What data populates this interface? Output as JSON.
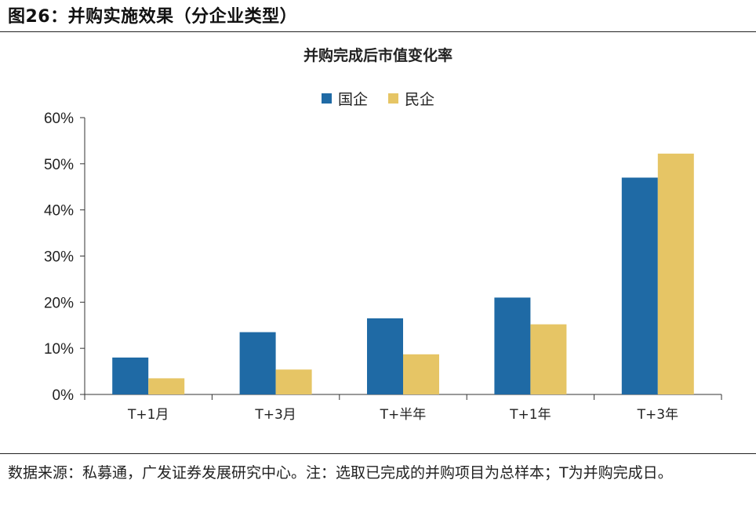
{
  "figure": {
    "title": "图26：并购实施效果（分企业类型）",
    "note": "数据来源：私募通，广发证券发展研究中心。注：选取已完成的并购项目为总样本；T为并购完成日。"
  },
  "chart_data": {
    "type": "bar",
    "title": "并购完成后市值变化率",
    "categories": [
      "T+1月",
      "T+3月",
      "T+半年",
      "T+1年",
      "T+3年"
    ],
    "series": [
      {
        "name": "国企",
        "color": "#1f6aa5",
        "values": [
          0.08,
          0.135,
          0.165,
          0.21,
          0.47
        ]
      },
      {
        "name": "民企",
        "color": "#e6c565",
        "values": [
          0.035,
          0.054,
          0.087,
          0.152,
          0.522
        ]
      }
    ],
    "ylim": [
      0,
      0.6
    ],
    "yticks": [
      {
        "value": 0,
        "label": "0%"
      },
      {
        "value": 0.1,
        "label": "10%"
      },
      {
        "value": 0.2,
        "label": "20%"
      },
      {
        "value": 0.3,
        "label": "30%"
      },
      {
        "value": 0.4,
        "label": "40%"
      },
      {
        "value": 0.5,
        "label": "50%"
      },
      {
        "value": 0.6,
        "label": "60%"
      }
    ],
    "xlabel": "",
    "ylabel": "",
    "grid": false,
    "legend_position": "top-center"
  }
}
